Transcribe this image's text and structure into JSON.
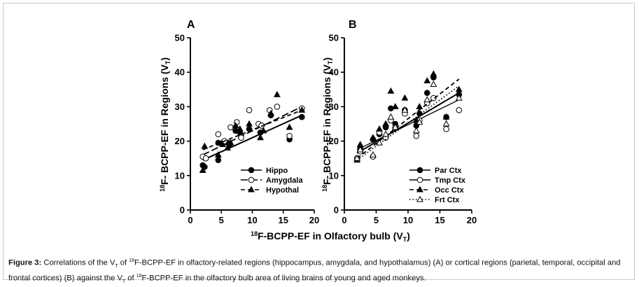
{
  "caption": {
    "bold": "Figure 3:",
    "parts": [
      " Correlations of the V",
      "T",
      " of ",
      "18",
      "F-BCPP-EF in olfactory-related regions (hippocampus, amygdala, and hypothalamus) (A) or cortical regions (parietal, temporal, occipital and frontal cortices) (B) against the V",
      "T",
      " of ",
      "18",
      "F-BCPP-EF in the olfactory bulb area of living brains of young and aged monkeys."
    ]
  },
  "shared_xlabel": {
    "sup": "18",
    "main": "F-BCPP-EF in Olfactory bulb (V",
    "sub": "T",
    "close": ")"
  },
  "chart_data": [
    {
      "type": "scatter",
      "panel": "A",
      "ylabel": {
        "sup": "18",
        "main": "F- BCPP-EF in Regions (V",
        "sub": "T",
        "close": ")"
      },
      "xlim": [
        0,
        20
      ],
      "ylim": [
        0,
        50
      ],
      "xticks": [
        0,
        5,
        10,
        15,
        20
      ],
      "yticks": [
        0,
        10,
        20,
        30,
        40,
        50
      ],
      "legend_position": "bottom-right",
      "series": [
        {
          "name": "Hippo",
          "marker": "filled-circle",
          "line": "solid",
          "fit": [
            [
              2,
              14.5
            ],
            [
              18,
              27.5
            ]
          ],
          "points": [
            [
              2,
              13
            ],
            [
              2.3,
              12.5
            ],
            [
              4.5,
              14.5
            ],
            [
              4.5,
              19.5
            ],
            [
              5.2,
              19.5
            ],
            [
              6,
              19.5
            ],
            [
              6.3,
              19
            ],
            [
              7.3,
              23
            ],
            [
              8,
              22.5
            ],
            [
              9.5,
              23.5
            ],
            [
              11.3,
              22.5
            ],
            [
              11.5,
              24.5
            ],
            [
              13,
              27.5
            ],
            [
              16,
              20.5
            ],
            [
              18,
              27
            ]
          ]
        },
        {
          "name": "Amygdala",
          "marker": "open-circle",
          "line": "long-dash",
          "fit": [
            [
              2,
              16
            ],
            [
              18,
              30
            ]
          ],
          "points": [
            [
              2,
              15.5
            ],
            [
              2.5,
              15
            ],
            [
              4.5,
              22
            ],
            [
              5.5,
              20
            ],
            [
              6.5,
              24
            ],
            [
              7.5,
              25.5
            ],
            [
              8.2,
              21
            ],
            [
              9.5,
              29
            ],
            [
              11,
              25
            ],
            [
              11.5,
              24.5
            ],
            [
              12.8,
              29
            ],
            [
              14,
              30
            ],
            [
              16,
              21.5
            ],
            [
              18,
              29.5
            ]
          ]
        },
        {
          "name": "Hypothal",
          "marker": "filled-triangle",
          "line": "dash",
          "fit": [
            [
              2,
              17.5
            ],
            [
              18,
              29
            ]
          ],
          "points": [
            [
              2,
              11.5
            ],
            [
              2.3,
              18.5
            ],
            [
              4.5,
              16
            ],
            [
              5.2,
              19
            ],
            [
              6,
              18
            ],
            [
              6.5,
              19.5
            ],
            [
              7.3,
              24.5
            ],
            [
              8,
              23.5
            ],
            [
              9.5,
              25
            ],
            [
              11.3,
              21
            ],
            [
              11.8,
              23
            ],
            [
              13,
              28
            ],
            [
              14,
              33.5
            ],
            [
              16,
              24
            ],
            [
              18,
              29
            ]
          ]
        }
      ]
    },
    {
      "type": "scatter",
      "panel": "B",
      "ylabel": {
        "sup": "18",
        "main": "F- BCPP-EF in Regions (V",
        "sub": "T",
        "close": ")"
      },
      "xlim": [
        0,
        20
      ],
      "ylim": [
        0,
        50
      ],
      "xticks": [
        0,
        5,
        10,
        15,
        20
      ],
      "yticks": [
        0,
        10,
        20,
        30,
        40,
        50
      ],
      "legend_position": "bottom-right",
      "series": [
        {
          "name": "Par Ctx",
          "marker": "filled-circle",
          "line": "solid",
          "fit": [
            [
              2,
              16.5
            ],
            [
              18,
              34
            ]
          ],
          "points": [
            [
              2,
              15
            ],
            [
              2.5,
              18
            ],
            [
              4.5,
              20.5
            ],
            [
              5.5,
              22
            ],
            [
              6.5,
              24
            ],
            [
              7.3,
              29.5
            ],
            [
              8,
              25
            ],
            [
              9.5,
              29
            ],
            [
              11.3,
              24.5
            ],
            [
              11.8,
              28
            ],
            [
              13,
              34
            ],
            [
              14,
              38.5
            ],
            [
              16,
              27
            ],
            [
              18,
              33.5
            ]
          ]
        },
        {
          "name": "Tmp Ctx",
          "marker": "open-circle",
          "line": "solid-thin",
          "fit": [
            [
              2,
              17.5
            ],
            [
              18,
              32
            ]
          ],
          "points": [
            [
              2,
              15
            ],
            [
              2.5,
              17
            ],
            [
              4.5,
              15.5
            ],
            [
              5.5,
              22.5
            ],
            [
              6.5,
              21
            ],
            [
              7.3,
              26
            ],
            [
              8,
              24
            ],
            [
              9.5,
              28
            ],
            [
              11.3,
              21.5
            ],
            [
              11.8,
              26
            ],
            [
              13,
              31
            ],
            [
              14,
              32.5
            ],
            [
              16,
              23.5
            ],
            [
              18,
              29
            ]
          ]
        },
        {
          "name": "Occ Ctx",
          "marker": "filled-triangle",
          "line": "dash",
          "fit": [
            [
              2,
              15
            ],
            [
              18,
              38
            ]
          ],
          "points": [
            [
              2,
              14.5
            ],
            [
              2.5,
              19
            ],
            [
              4.5,
              21
            ],
            [
              5.5,
              23.5
            ],
            [
              6.5,
              25
            ],
            [
              7.3,
              34.5
            ],
            [
              8,
              30
            ],
            [
              9.5,
              32.5
            ],
            [
              11.3,
              26
            ],
            [
              11.8,
              30
            ],
            [
              13,
              37.5
            ],
            [
              14,
              39.5
            ],
            [
              16,
              27
            ],
            [
              18,
              35
            ]
          ]
        },
        {
          "name": "Frt Ctx",
          "marker": "open-triangle",
          "line": "dot",
          "fit": [
            [
              2,
              14.5
            ],
            [
              18,
              36
            ]
          ],
          "points": [
            [
              2,
              15
            ],
            [
              2.5,
              17.5
            ],
            [
              4.5,
              16
            ],
            [
              5.5,
              19.5
            ],
            [
              6.5,
              22
            ],
            [
              7.3,
              27
            ],
            [
              8,
              24
            ],
            [
              9.5,
              29
            ],
            [
              11.3,
              23
            ],
            [
              11.8,
              25.5
            ],
            [
              13,
              32
            ],
            [
              14,
              36.5
            ],
            [
              16,
              25
            ],
            [
              18,
              32.5
            ]
          ]
        }
      ]
    }
  ]
}
